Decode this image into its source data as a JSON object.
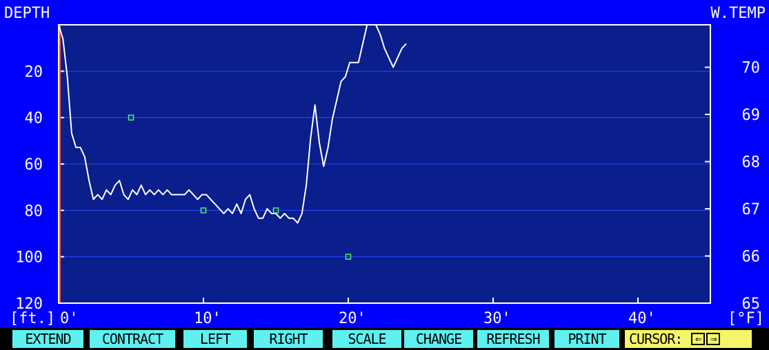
{
  "header": {
    "left_axis_title": "DEPTH",
    "right_axis_title": "W.TEMP",
    "left_unit": "[ft.]",
    "right_unit": "[°F]"
  },
  "colors": {
    "background": "#0000ff",
    "plot_area": "#0a1e8c",
    "grid": "#2848ff",
    "frame": "#ffffff",
    "trace": "#ffffff",
    "markers": "#55ee66",
    "cursor_line": "#ff5050",
    "key_bg": "#5ff0f0",
    "cursor_key_bg": "#f5f56a"
  },
  "chart_data": {
    "type": "line",
    "xlim": [
      0,
      45
    ],
    "x_ticks": [
      0,
      10,
      20,
      30,
      40
    ],
    "x_tick_labels": [
      "0'",
      "10'",
      "20'",
      "30'",
      "40'"
    ],
    "y_depth_lim": [
      0,
      120
    ],
    "y_depth_ticks": [
      20,
      40,
      60,
      80,
      100,
      120
    ],
    "y_depth_tick_labels": [
      "20",
      "40",
      "60",
      "80",
      "100",
      "120"
    ],
    "y_temp_lim": [
      65,
      70.9
    ],
    "y_temp_ticks": [
      70,
      69,
      68,
      67,
      66,
      65
    ],
    "y_temp_tick_labels": [
      "70",
      "69",
      "68",
      "67",
      "66",
      "65"
    ],
    "grid": true,
    "cursor_x": 0,
    "series": [
      {
        "x": [
          0,
          0.3,
          0.6,
          0.9,
          1.2,
          1.5,
          1.8,
          2.1,
          2.4,
          2.7,
          3.0,
          3.3,
          3.6,
          3.9,
          4.2,
          4.5,
          4.8,
          5.1,
          5.4,
          5.7,
          6.0,
          6.3,
          6.6,
          6.9,
          7.2,
          7.5,
          7.8,
          8.1,
          8.4,
          8.7,
          9.0,
          9.3,
          9.6,
          9.9,
          10.2,
          10.5,
          10.8,
          11.1,
          11.4,
          11.7,
          12.0,
          12.3,
          12.6,
          12.9,
          13.2,
          13.5,
          13.8,
          14.1,
          14.4,
          14.7,
          15.0,
          15.3,
          15.6,
          15.9,
          16.2,
          16.5,
          16.8,
          17.1,
          17.4,
          17.7,
          18.0,
          18.3,
          18.6,
          18.9,
          19.2,
          19.5,
          19.8,
          20.1,
          20.4,
          20.7,
          21.0,
          21.3,
          21.6,
          21.9,
          22.2,
          22.5,
          22.8,
          23.1,
          23.4,
          23.7,
          24.0
        ],
        "y_temp": [
          70.9,
          70.6,
          69.8,
          68.6,
          68.3,
          68.3,
          68.1,
          67.6,
          67.2,
          67.3,
          67.2,
          67.4,
          67.3,
          67.5,
          67.6,
          67.3,
          67.2,
          67.4,
          67.3,
          67.5,
          67.3,
          67.4,
          67.3,
          67.4,
          67.3,
          67.4,
          67.3,
          67.3,
          67.3,
          67.3,
          67.4,
          67.3,
          67.2,
          67.3,
          67.3,
          67.2,
          67.1,
          67.0,
          66.9,
          67.0,
          66.9,
          67.1,
          66.9,
          67.2,
          67.3,
          67.0,
          66.8,
          66.8,
          67.0,
          66.9,
          66.9,
          66.8,
          66.9,
          66.8,
          66.8,
          66.7,
          66.9,
          67.5,
          68.5,
          69.2,
          68.4,
          67.9,
          68.3,
          68.9,
          69.3,
          69.7,
          69.8,
          70.1,
          70.1,
          70.1,
          70.5,
          70.9,
          70.9,
          70.9,
          70.7,
          70.4,
          70.2,
          70.0,
          70.2,
          70.4,
          70.5
        ]
      }
    ],
    "markers": [
      {
        "x": 5,
        "depth": 40
      },
      {
        "x": 10,
        "depth": 80
      },
      {
        "x": 15,
        "depth": 80
      },
      {
        "x": 20,
        "depth": 100
      }
    ]
  },
  "function_keys": {
    "extend": "EXTEND",
    "contract": "CONTRACT",
    "left": "LEFT",
    "right": "RIGHT",
    "scale": "SCALE",
    "change": "CHANGE",
    "refresh": "REFRESH",
    "print": "PRINT",
    "cursor": "CURSOR:",
    "cursor_left_arrow": "⇐",
    "cursor_right_arrow": "⇒"
  }
}
